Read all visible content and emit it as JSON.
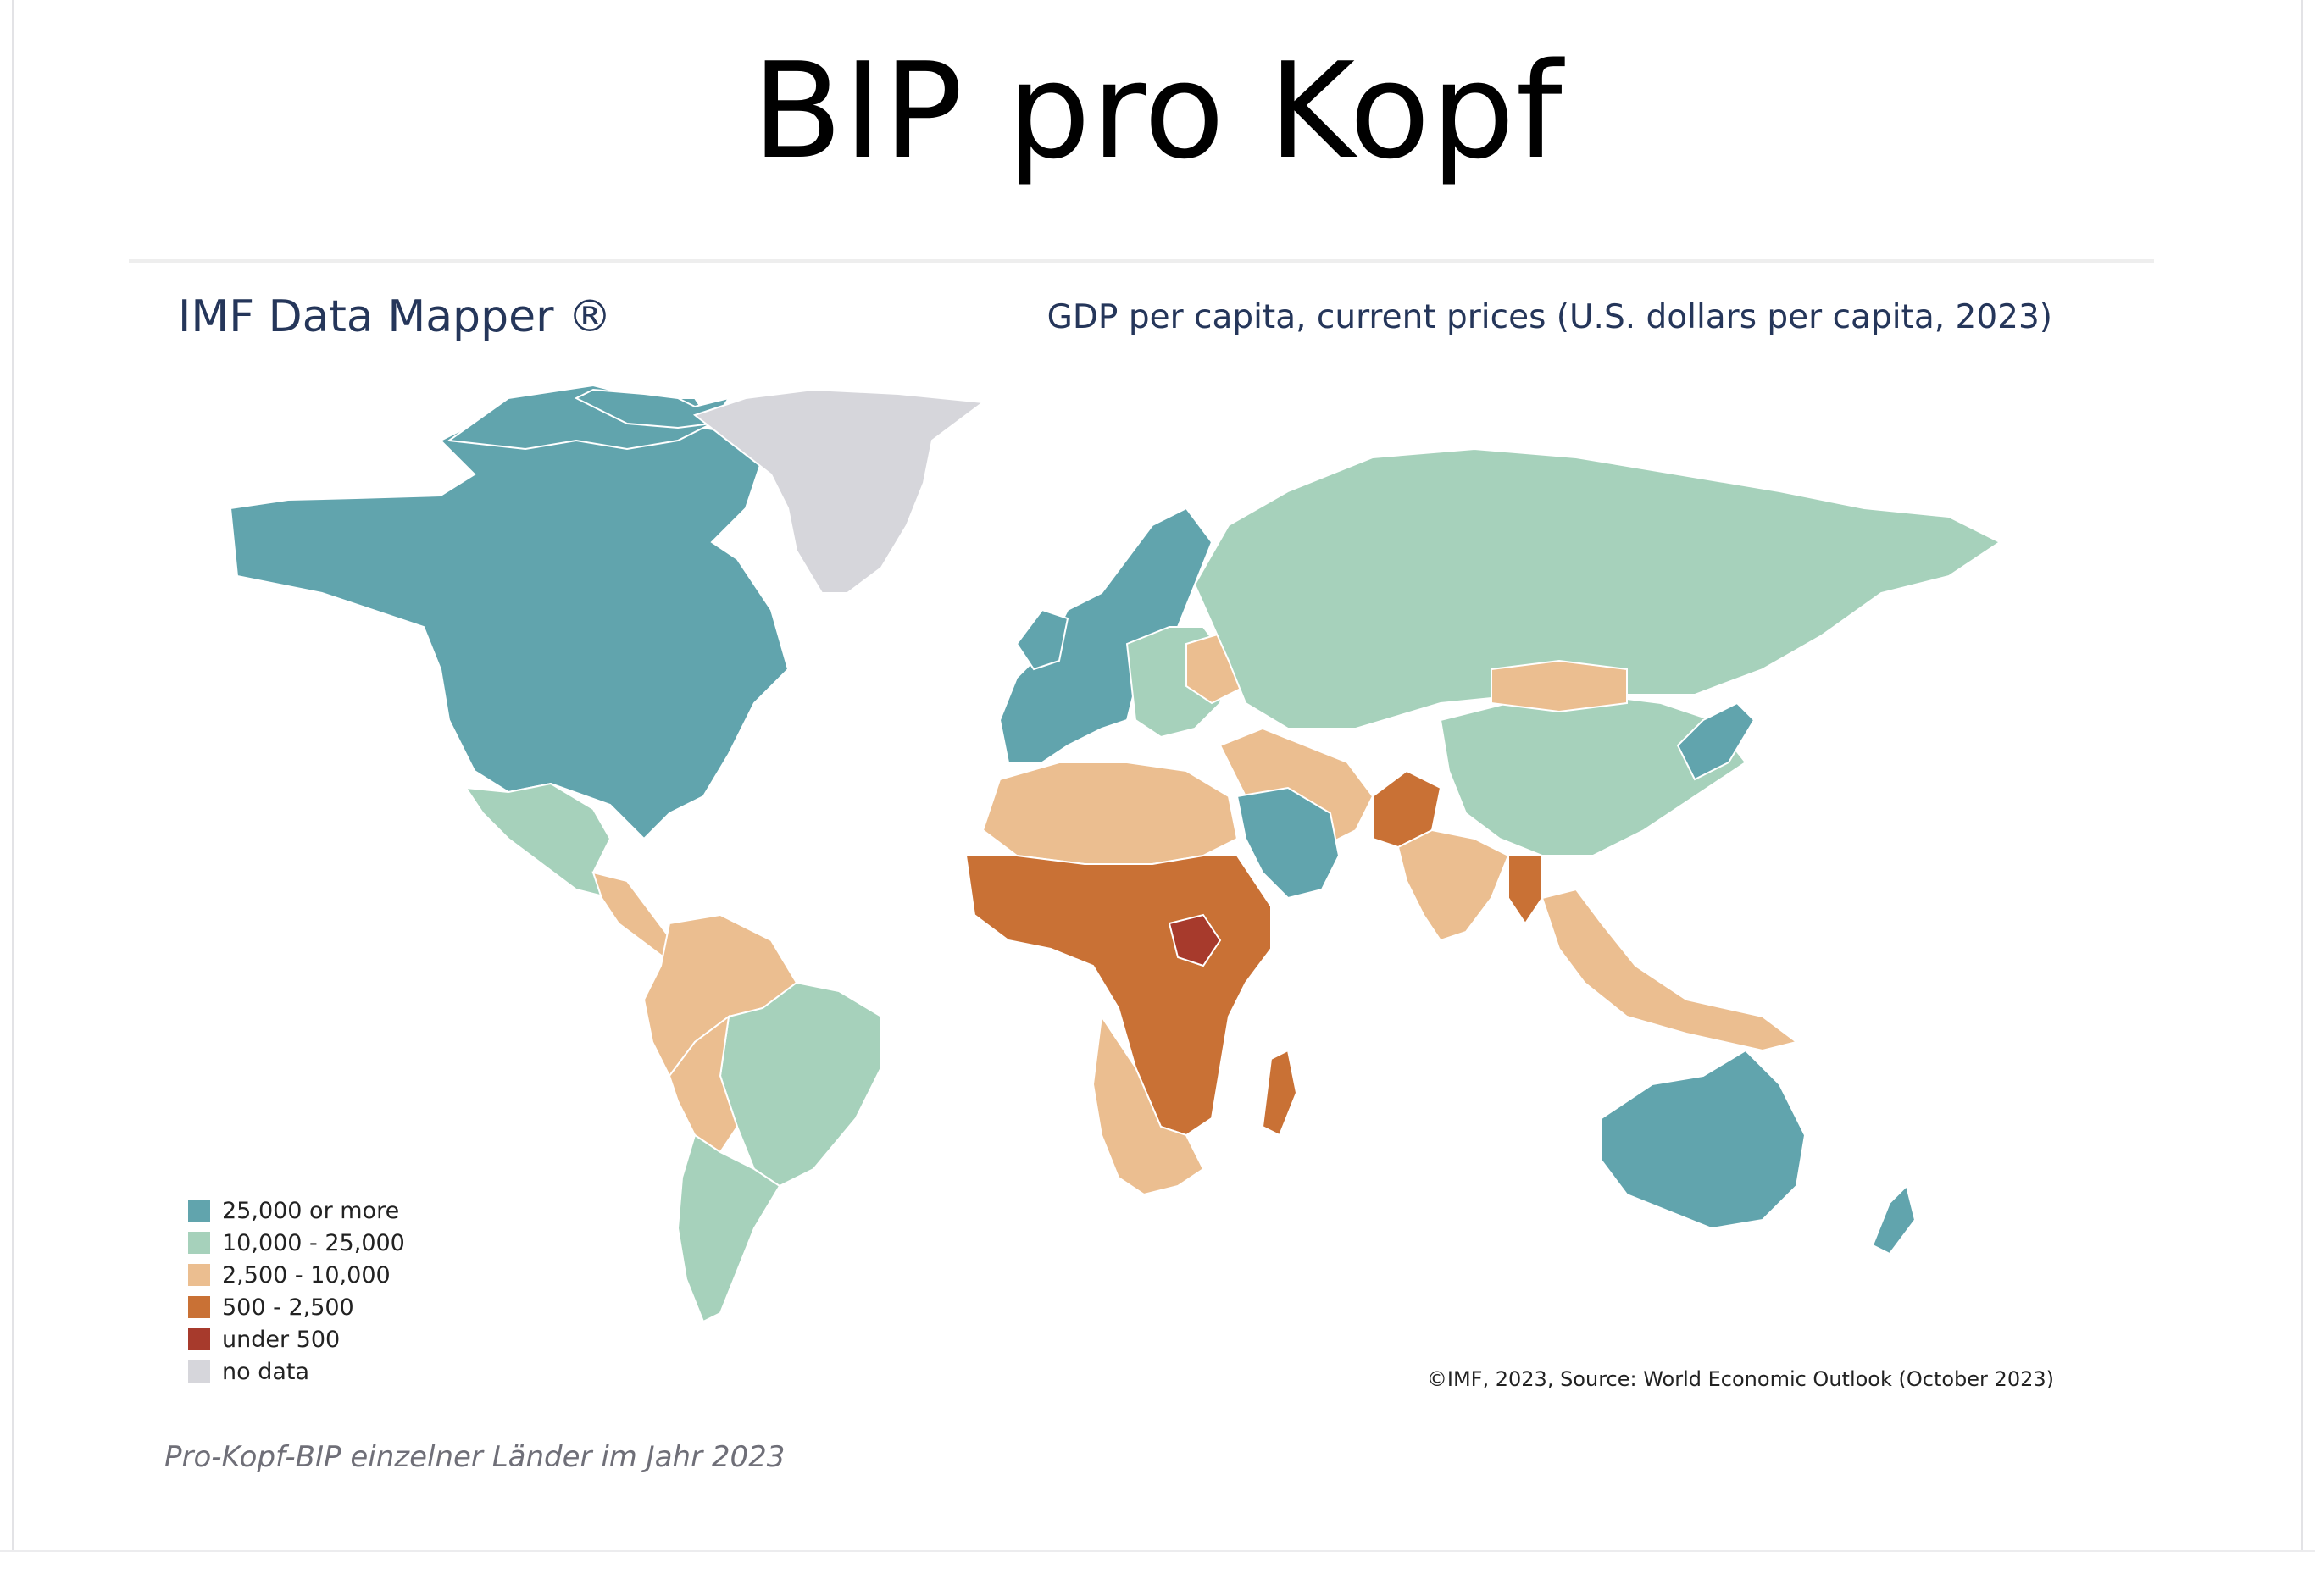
{
  "slide": {
    "title": "BIP pro Kopf"
  },
  "map_header": {
    "brand": "IMF Data Mapper ®",
    "subtitle": "GDP per capita, current prices (U.S. dollars per capita, 2023)"
  },
  "legend": [
    {
      "label": "25,000 or more",
      "color": "#61a4ad"
    },
    {
      "label": "10,000 - 25,000",
      "color": "#a6d1bb"
    },
    {
      "label": "2,500 - 10,000",
      "color": "#ebbe90"
    },
    {
      "label": "500 - 2,500",
      "color": "#c97135"
    },
    {
      "label": "under 500",
      "color": "#a73a2c"
    },
    {
      "label": "no data",
      "color": "#d6d6db"
    }
  ],
  "source": "©IMF, 2023, Source: World Economic Outlook (October 2023)",
  "caption": "Pro-Kopf-BIP einzelner Länder im Jahr 2023",
  "regions": [
    {
      "name": "North America (US, Canada)",
      "class": "25,000 or more"
    },
    {
      "name": "Greenland",
      "class": "no data"
    },
    {
      "name": "Mexico",
      "class": "10,000 - 25,000"
    },
    {
      "name": "Central America",
      "class": "2,500 - 10,000"
    },
    {
      "name": "Brazil, Argentina, Chile",
      "class": "10,000 - 25,000"
    },
    {
      "name": "Andean countries, Paraguay",
      "class": "2,500 - 10,000"
    },
    {
      "name": "Western & Northern Europe",
      "class": "25,000 or more"
    },
    {
      "name": "Eastern Europe",
      "class": "10,000 - 25,000"
    },
    {
      "name": "Ukraine",
      "class": "2,500 - 10,000"
    },
    {
      "name": "Russia, Kazakhstan",
      "class": "10,000 - 25,000"
    },
    {
      "name": "China",
      "class": "10,000 - 25,000"
    },
    {
      "name": "Mongolia",
      "class": "2,500 - 10,000"
    },
    {
      "name": "Japan, South Korea",
      "class": "25,000 or more"
    },
    {
      "name": "India, Middle East, Southeast Asia",
      "class": "2,500 - 10,000"
    },
    {
      "name": "Pakistan, Myanmar",
      "class": "500 - 2,500"
    },
    {
      "name": "Saudi Arabia, Gulf states",
      "class": "25,000 or more"
    },
    {
      "name": "North Africa",
      "class": "2,500 - 10,000"
    },
    {
      "name": "Sub-Saharan Africa",
      "class": "500 - 2,500"
    },
    {
      "name": "South Sudan",
      "class": "under 500"
    },
    {
      "name": "Southern Africa",
      "class": "2,500 - 10,000"
    },
    {
      "name": "Madagascar",
      "class": "500 - 2,500"
    },
    {
      "name": "Australia, New Zealand",
      "class": "25,000 or more"
    }
  ]
}
